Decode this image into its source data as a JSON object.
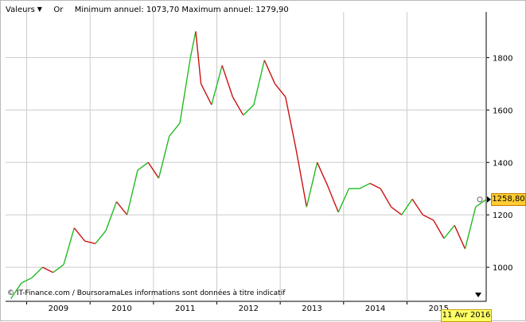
{
  "header": {
    "valeurs_label": "Valeurs",
    "instrument_label": "Or",
    "minmax_text": "Minimum annuel: 1073,70 Maximum annuel: 1279,90"
  },
  "footer": {
    "credit": "© IT-Finance.com / BoursoramaLes informations sont données à titre indicatif",
    "date_badge": "11 Avr 2016"
  },
  "price_badge": "1258,80",
  "colors": {
    "up": "#22bb22",
    "down": "#cc1111",
    "grid": "#cccccc",
    "badge": "#ffcc33"
  },
  "chart_data": {
    "type": "line",
    "title": "",
    "xlabel": "",
    "ylabel": "",
    "x_ticks": [
      "2009",
      "2010",
      "2011",
      "2012",
      "2013",
      "2014",
      "2015"
    ],
    "y_ticks": [
      1000,
      1200,
      1400,
      1600,
      1800
    ],
    "ylim": [
      870,
      1950
    ],
    "x_range": [
      "2008-09",
      "2016-04"
    ],
    "y_axis_side": "right",
    "grid": true,
    "series": [
      {
        "x": [
          "2008-10",
          "2008-12",
          "2009-02",
          "2009-04",
          "2009-06",
          "2009-08",
          "2009-10",
          "2009-12",
          "2010-02",
          "2010-04",
          "2010-06",
          "2010-08",
          "2010-10",
          "2010-12",
          "2011-02",
          "2011-04",
          "2011-06",
          "2011-08",
          "2011-09",
          "2011-10",
          "2011-12",
          "2012-02",
          "2012-04",
          "2012-06",
          "2012-08",
          "2012-10",
          "2012-12",
          "2013-02",
          "2013-04",
          "2013-06",
          "2013-08",
          "2013-10",
          "2013-12",
          "2014-02",
          "2014-04",
          "2014-06",
          "2014-08",
          "2014-10",
          "2014-12",
          "2015-02",
          "2015-04",
          "2015-06",
          "2015-08",
          "2015-10",
          "2015-12",
          "2016-02",
          "2016-04"
        ],
        "values": [
          880,
          940,
          960,
          1000,
          980,
          1010,
          1150,
          1100,
          1090,
          1140,
          1250,
          1200,
          1370,
          1400,
          1340,
          1500,
          1550,
          1800,
          1900,
          1700,
          1620,
          1770,
          1650,
          1580,
          1620,
          1790,
          1700,
          1650,
          1450,
          1230,
          1400,
          1310,
          1210,
          1300,
          1300,
          1320,
          1300,
          1230,
          1200,
          1260,
          1200,
          1180,
          1110,
          1160,
          1070,
          1230,
          1258.8
        ]
      }
    ]
  }
}
